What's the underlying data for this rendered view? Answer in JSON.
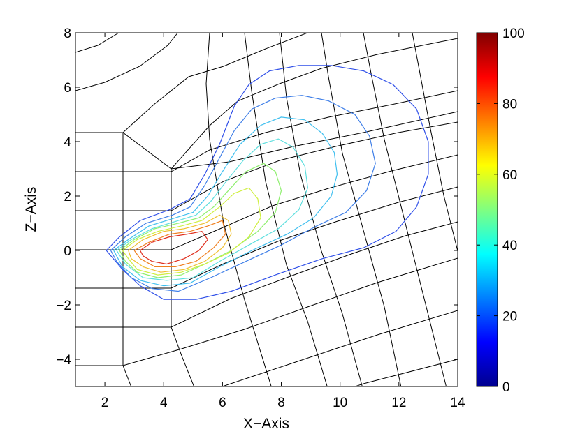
{
  "chart_data": {
    "type": "contour",
    "xlabel": "X−Axis",
    "ylabel": "Z−Axis",
    "xlim": [
      1,
      14
    ],
    "ylim": [
      -5,
      8
    ],
    "xticks": [
      2,
      4,
      6,
      8,
      10,
      12,
      14
    ],
    "xtick_labels": [
      "2",
      "4",
      "6",
      "8",
      "10",
      "12",
      "14"
    ],
    "yticks": [
      -4,
      -2,
      0,
      2,
      4,
      6,
      8
    ],
    "ytick_labels": [
      "−4",
      "−2",
      "0",
      "2",
      "4",
      "6",
      "8"
    ],
    "grid": false,
    "colorbar": {
      "colormap": "jet",
      "min": 0,
      "max": 100,
      "ticks": [
        0,
        20,
        40,
        60,
        80,
        100
      ],
      "tick_labels": [
        "0",
        "20",
        "40",
        "60",
        "80",
        "100"
      ]
    },
    "contour_levels": [
      {
        "level": 17,
        "color": "#2f4fe8",
        "path": [
          [
            2.05,
            0
          ],
          [
            2.5,
            0.5
          ],
          [
            3.2,
            1.1
          ],
          [
            4.2,
            1.5
          ],
          [
            4.9,
            1.9
          ],
          [
            5.4,
            2.8
          ],
          [
            5.9,
            3.9
          ],
          [
            6.4,
            5.3
          ],
          [
            6.9,
            6.1
          ],
          [
            7.6,
            6.6
          ],
          [
            8.6,
            6.8
          ],
          [
            9.7,
            6.8
          ],
          [
            10.8,
            6.6
          ],
          [
            11.8,
            6.1
          ],
          [
            12.6,
            5.2
          ],
          [
            13,
            4.0
          ],
          [
            13.0,
            2.8
          ],
          [
            12.6,
            1.6
          ],
          [
            11.9,
            0.7
          ],
          [
            10.8,
            0.1
          ],
          [
            9.4,
            -0.3
          ],
          [
            7.8,
            -0.9
          ],
          [
            6.3,
            -1.5
          ],
          [
            5.1,
            -1.8
          ],
          [
            4.0,
            -1.8
          ],
          [
            3.2,
            -1.3
          ],
          [
            2.6,
            -0.7
          ],
          [
            2.05,
            0
          ]
        ]
      },
      {
        "level": 23,
        "color": "#3f7fe8",
        "path": [
          [
            2.2,
            0
          ],
          [
            2.7,
            0.5
          ],
          [
            3.4,
            1.0
          ],
          [
            4.3,
            1.3
          ],
          [
            4.9,
            1.6
          ],
          [
            5.4,
            2.4
          ],
          [
            5.9,
            3.4
          ],
          [
            6.4,
            4.4
          ],
          [
            7.0,
            5.2
          ],
          [
            7.8,
            5.6
          ],
          [
            8.7,
            5.7
          ],
          [
            9.6,
            5.5
          ],
          [
            10.5,
            5.0
          ],
          [
            11.0,
            4.2
          ],
          [
            11.2,
            3.2
          ],
          [
            10.9,
            2.2
          ],
          [
            10.2,
            1.4
          ],
          [
            9.2,
            0.9
          ],
          [
            8.0,
            0.2
          ],
          [
            6.8,
            -0.4
          ],
          [
            5.6,
            -1.0
          ],
          [
            4.5,
            -1.5
          ],
          [
            3.6,
            -1.4
          ],
          [
            2.9,
            -1.0
          ],
          [
            2.4,
            -0.4
          ],
          [
            2.2,
            0
          ]
        ]
      },
      {
        "level": 30,
        "color": "#3fbfef",
        "path": [
          [
            2.3,
            0
          ],
          [
            2.8,
            0.4
          ],
          [
            3.5,
            0.9
          ],
          [
            4.4,
            1.2
          ],
          [
            5.0,
            1.4
          ],
          [
            5.5,
            2.0
          ],
          [
            6.0,
            2.9
          ],
          [
            6.6,
            3.9
          ],
          [
            7.3,
            4.6
          ],
          [
            8.0,
            4.9
          ],
          [
            8.8,
            4.8
          ],
          [
            9.4,
            4.3
          ],
          [
            9.8,
            3.6
          ],
          [
            9.9,
            2.8
          ],
          [
            9.7,
            2.0
          ],
          [
            9.1,
            1.2
          ],
          [
            8.2,
            0.6
          ],
          [
            7.0,
            0.0
          ],
          [
            5.9,
            -0.6
          ],
          [
            4.9,
            -1.2
          ],
          [
            4.0,
            -1.3
          ],
          [
            3.2,
            -1.1
          ],
          [
            2.6,
            -0.6
          ],
          [
            2.3,
            0
          ]
        ]
      },
      {
        "level": 37,
        "color": "#5fdfdf",
        "path": [
          [
            2.4,
            0
          ],
          [
            2.9,
            0.4
          ],
          [
            3.6,
            0.8
          ],
          [
            4.5,
            1.1
          ],
          [
            5.1,
            1.3
          ],
          [
            5.6,
            1.8
          ],
          [
            6.1,
            2.5
          ],
          [
            6.7,
            3.3
          ],
          [
            7.3,
            3.9
          ],
          [
            7.9,
            4.1
          ],
          [
            8.4,
            3.8
          ],
          [
            8.8,
            3.1
          ],
          [
            8.9,
            2.3
          ],
          [
            8.6,
            1.5
          ],
          [
            7.9,
            0.8
          ],
          [
            6.9,
            0.2
          ],
          [
            5.9,
            -0.4
          ],
          [
            5.0,
            -1.0
          ],
          [
            4.1,
            -1.1
          ],
          [
            3.3,
            -1.0
          ],
          [
            2.7,
            -0.5
          ],
          [
            2.4,
            0
          ]
        ]
      },
      {
        "level": 47,
        "color": "#8fef6f",
        "path": [
          [
            2.5,
            0
          ],
          [
            3.0,
            0.4
          ],
          [
            3.7,
            0.8
          ],
          [
            4.5,
            1.0
          ],
          [
            5.2,
            1.2
          ],
          [
            5.7,
            1.6
          ],
          [
            6.2,
            2.2
          ],
          [
            6.8,
            2.9
          ],
          [
            7.4,
            3.2
          ],
          [
            7.8,
            2.9
          ],
          [
            8.0,
            2.2
          ],
          [
            7.8,
            1.4
          ],
          [
            7.2,
            0.7
          ],
          [
            6.3,
            0.0
          ],
          [
            5.4,
            -0.5
          ],
          [
            4.6,
            -0.9
          ],
          [
            3.8,
            -1.0
          ],
          [
            3.1,
            -0.8
          ],
          [
            2.7,
            -0.4
          ],
          [
            2.5,
            0
          ]
        ]
      },
      {
        "level": 57,
        "color": "#cfef3f",
        "path": [
          [
            2.6,
            0
          ],
          [
            3.1,
            0.4
          ],
          [
            3.8,
            0.7
          ],
          [
            4.6,
            0.9
          ],
          [
            5.3,
            1.1
          ],
          [
            5.9,
            1.6
          ],
          [
            6.4,
            2.1
          ],
          [
            6.9,
            2.3
          ],
          [
            7.2,
            1.9
          ],
          [
            7.3,
            1.2
          ],
          [
            6.9,
            0.5
          ],
          [
            6.2,
            -0.1
          ],
          [
            5.4,
            -0.5
          ],
          [
            4.6,
            -0.8
          ],
          [
            3.8,
            -0.9
          ],
          [
            3.1,
            -0.7
          ],
          [
            2.8,
            -0.3
          ],
          [
            2.6,
            0
          ]
        ]
      },
      {
        "level": 67,
        "color": "#efbf2f",
        "path": [
          [
            2.8,
            0
          ],
          [
            3.3,
            0.4
          ],
          [
            4.0,
            0.7
          ],
          [
            4.7,
            0.8
          ],
          [
            5.4,
            1.0
          ],
          [
            5.9,
            1.3
          ],
          [
            6.2,
            1.1
          ],
          [
            6.3,
            0.6
          ],
          [
            6.0,
            0.1
          ],
          [
            5.4,
            -0.4
          ],
          [
            4.7,
            -0.7
          ],
          [
            3.9,
            -0.8
          ],
          [
            3.3,
            -0.6
          ],
          [
            2.9,
            -0.3
          ],
          [
            2.8,
            0
          ]
        ]
      },
      {
        "level": 77,
        "color": "#ef7f1f",
        "path": [
          [
            3.0,
            0
          ],
          [
            3.5,
            0.3
          ],
          [
            4.2,
            0.6
          ],
          [
            4.9,
            0.7
          ],
          [
            5.5,
            0.9
          ],
          [
            6.0,
            1.1
          ],
          [
            6.1,
            0.6
          ],
          [
            5.7,
            0.1
          ],
          [
            5.1,
            -0.4
          ],
          [
            4.4,
            -0.6
          ],
          [
            3.7,
            -0.6
          ],
          [
            3.2,
            -0.3
          ],
          [
            3.0,
            0
          ]
        ]
      },
      {
        "level": 88,
        "color": "#df2f1f",
        "path": [
          [
            3.2,
            0
          ],
          [
            3.6,
            0.3
          ],
          [
            4.2,
            0.5
          ],
          [
            4.8,
            0.6
          ],
          [
            5.3,
            0.7
          ],
          [
            5.5,
            0.4
          ],
          [
            5.2,
            0.0
          ],
          [
            4.7,
            -0.3
          ],
          [
            4.1,
            -0.5
          ],
          [
            3.6,
            -0.4
          ],
          [
            3.3,
            -0.2
          ],
          [
            3.2,
            0
          ]
        ]
      }
    ]
  }
}
